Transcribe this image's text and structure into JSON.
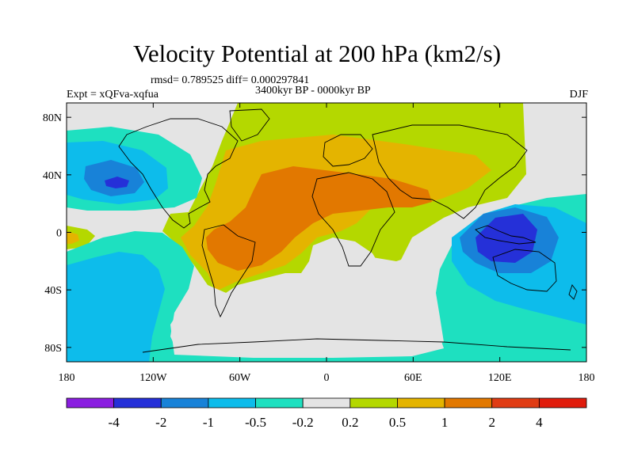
{
  "figure": {
    "title": "Velocity Potential at 200 hPa (km2/s)",
    "stats": "rmsd= 0.789525 diff= 0.000297841",
    "experiment": "Expt = xQFva-xqfua",
    "period": "3400kyr BP - 0000kyr BP",
    "season": "DJF"
  },
  "axes": {
    "lat_ticks": [
      "80N",
      "40N",
      "0",
      "40S",
      "80S"
    ],
    "lat_values": [
      80,
      40,
      0,
      -40,
      -80
    ],
    "lon_ticks": [
      "180",
      "120W",
      "60W",
      "0",
      "60E",
      "120E",
      "180"
    ],
    "lon_values": [
      -180,
      -120,
      -60,
      0,
      60,
      120,
      180
    ],
    "lat_range": [
      -90,
      90
    ],
    "lon_range": [
      -180,
      180
    ]
  },
  "colorbar": {
    "labels": [
      "-4",
      "-2",
      "-1",
      "-0.5",
      "-0.2",
      "0.2",
      "0.5",
      "1",
      "2",
      "4"
    ],
    "colors": [
      "#8A1EE0",
      "#2530D8",
      "#1882D8",
      "#0DBCEB",
      "#1EE0C0",
      "#E4E4E4",
      "#B4D800",
      "#E4B400",
      "#E27800",
      "#E03C14",
      "#E01C0C"
    ]
  },
  "palette": {
    "land_outline": "#000000",
    "frame": "#000000",
    "background": "#E4E4E4"
  }
}
